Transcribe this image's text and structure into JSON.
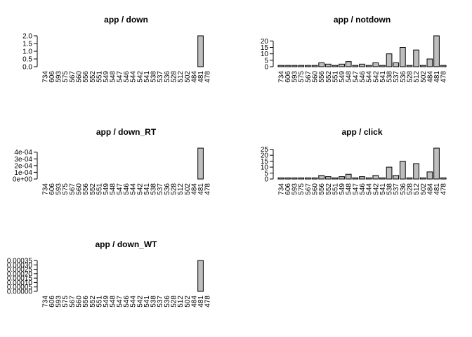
{
  "colors": {
    "bar_fill": "#bebebe",
    "bar_stroke": "#000000",
    "axis": "#000000",
    "background": "#ffffff"
  },
  "chart_data": [
    {
      "type": "bar",
      "title": "app / down",
      "xlabel": "",
      "ylabel": "",
      "categories": [
        "734",
        "606",
        "593",
        "575",
        "567",
        "560",
        "556",
        "552",
        "551",
        "549",
        "548",
        "547",
        "546",
        "544",
        "542",
        "541",
        "538",
        "537",
        "536",
        "528",
        "512",
        "502",
        "484",
        "481",
        "478"
      ],
      "values": [
        0,
        0,
        0,
        0,
        0,
        0,
        0,
        0,
        0,
        0,
        0,
        0,
        0,
        0,
        0,
        0,
        0,
        0,
        0,
        0,
        0,
        0,
        0,
        2,
        0
      ],
      "ylim": [
        0,
        2
      ],
      "yticks": [
        "0.0",
        "0.5",
        "1.0",
        "1.5",
        "2.0"
      ],
      "ytick_values": [
        0,
        0.5,
        1,
        1.5,
        2
      ],
      "grid": false,
      "legend": "none"
    },
    {
      "type": "bar",
      "title": "app / notdown",
      "xlabel": "",
      "ylabel": "",
      "categories": [
        "734",
        "606",
        "593",
        "575",
        "567",
        "560",
        "556",
        "552",
        "551",
        "549",
        "548",
        "547",
        "546",
        "544",
        "542",
        "541",
        "538",
        "537",
        "536",
        "528",
        "512",
        "502",
        "484",
        "481",
        "478"
      ],
      "values": [
        1,
        1,
        1,
        1,
        1,
        1,
        3,
        2,
        1,
        2,
        4,
        1,
        2,
        1,
        3,
        1,
        10,
        3,
        15,
        1,
        13,
        1,
        6,
        24,
        1
      ],
      "ylim": [
        0,
        24
      ],
      "yticks": [
        "0",
        "5",
        "10",
        "15",
        "20"
      ],
      "ytick_values": [
        0,
        5,
        10,
        15,
        20
      ],
      "grid": false,
      "legend": "none"
    },
    {
      "type": "bar",
      "title": "app / down_RT",
      "xlabel": "",
      "ylabel": "",
      "categories": [
        "734",
        "606",
        "593",
        "575",
        "567",
        "560",
        "556",
        "552",
        "551",
        "549",
        "548",
        "547",
        "546",
        "544",
        "542",
        "541",
        "538",
        "537",
        "536",
        "528",
        "512",
        "502",
        "484",
        "481",
        "478"
      ],
      "values": [
        0,
        0,
        0,
        0,
        0,
        0,
        0,
        0,
        0,
        0,
        0,
        0,
        0,
        0,
        0,
        0,
        0,
        0,
        0,
        0,
        0,
        0,
        0,
        0.00046,
        0
      ],
      "ylim": [
        0,
        0.00046
      ],
      "yticks": [
        "0e+00",
        "1e-04",
        "2e-04",
        "3e-04",
        "4e-04"
      ],
      "ytick_values": [
        0,
        0.0001,
        0.0002,
        0.0003,
        0.0004
      ],
      "grid": false,
      "legend": "none"
    },
    {
      "type": "bar",
      "title": "app / click",
      "xlabel": "",
      "ylabel": "",
      "categories": [
        "734",
        "606",
        "593",
        "575",
        "567",
        "560",
        "556",
        "552",
        "551",
        "549",
        "548",
        "547",
        "546",
        "544",
        "542",
        "541",
        "538",
        "537",
        "536",
        "528",
        "512",
        "502",
        "484",
        "481",
        "478"
      ],
      "values": [
        1,
        1,
        1,
        1,
        1,
        1,
        3,
        2,
        1,
        2,
        4,
        1,
        2,
        1,
        3,
        1,
        10,
        3,
        15,
        1,
        13,
        1,
        6,
        26,
        1
      ],
      "ylim": [
        0,
        26
      ],
      "yticks": [
        "0",
        "5",
        "10",
        "15",
        "20",
        "25"
      ],
      "ytick_values": [
        0,
        5,
        10,
        15,
        20,
        25
      ],
      "grid": false,
      "legend": "none"
    },
    {
      "type": "bar",
      "title": "app / down_WT",
      "xlabel": "",
      "ylabel": "",
      "categories": [
        "734",
        "606",
        "593",
        "575",
        "567",
        "560",
        "556",
        "552",
        "551",
        "549",
        "548",
        "547",
        "546",
        "544",
        "542",
        "541",
        "538",
        "537",
        "536",
        "528",
        "512",
        "502",
        "484",
        "481",
        "478"
      ],
      "values": [
        0,
        0,
        0,
        0,
        0,
        0,
        0,
        0,
        0,
        0,
        0,
        0,
        0,
        0,
        0,
        0,
        0,
        0,
        0,
        0,
        0,
        0,
        0,
        0.00035,
        0
      ],
      "ylim": [
        0,
        0.00035
      ],
      "yticks": [
        "0.00000",
        "0.00005",
        "0.00010",
        "0.00015",
        "0.00020",
        "0.00025",
        "0.00030",
        "0.00035"
      ],
      "ytick_values": [
        0,
        5e-05,
        0.0001,
        0.00015,
        0.0002,
        0.00025,
        0.0003,
        0.00035
      ],
      "grid": false,
      "legend": "none"
    }
  ]
}
